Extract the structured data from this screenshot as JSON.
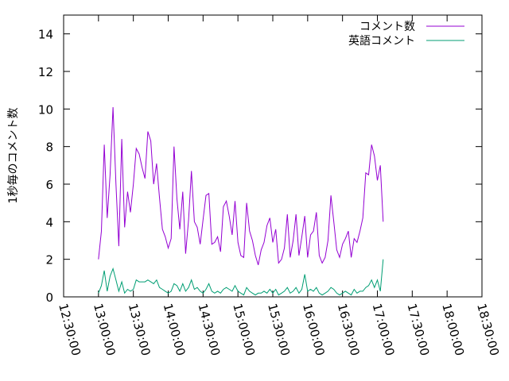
{
  "chart_data": {
    "type": "line",
    "title": "",
    "xlabel": "",
    "ylabel": "1秒毎のコメント数",
    "xlim": [
      "12:30:00",
      "18:30:00"
    ],
    "ylim": [
      0,
      15
    ],
    "x_ticks": [
      "12:30:00",
      "13:00:00",
      "13:30:00",
      "14:00:00",
      "14:30:00",
      "15:00:00",
      "15:30:00",
      "16:00:00",
      "16:30:00",
      "17:00:00",
      "17:30:00",
      "18:00:00",
      "18:30:00"
    ],
    "y_ticks": [
      "0",
      "2",
      "4",
      "6",
      "8",
      "10",
      "12",
      "14"
    ],
    "grid": false,
    "legend_position": "top-right",
    "series": [
      {
        "name": "コメント数",
        "color": "#9400d3",
        "points": [
          [
            "13:00:00",
            2.0
          ],
          [
            "13:02:30",
            3.5
          ],
          [
            "13:05:00",
            8.1
          ],
          [
            "13:07:30",
            4.2
          ],
          [
            "13:10:00",
            6.5
          ],
          [
            "13:12:30",
            10.1
          ],
          [
            "13:15:00",
            6.0
          ],
          [
            "13:17:30",
            2.7
          ],
          [
            "13:20:00",
            8.4
          ],
          [
            "13:22:30",
            3.7
          ],
          [
            "13:25:00",
            5.6
          ],
          [
            "13:27:30",
            4.5
          ],
          [
            "13:30:00",
            6.0
          ],
          [
            "13:32:30",
            7.9
          ],
          [
            "13:35:00",
            7.6
          ],
          [
            "13:37:30",
            6.9
          ],
          [
            "13:40:00",
            6.3
          ],
          [
            "13:42:30",
            8.8
          ],
          [
            "13:45:00",
            8.3
          ],
          [
            "13:47:30",
            6.0
          ],
          [
            "13:50:00",
            7.1
          ],
          [
            "13:52:30",
            5.3
          ],
          [
            "13:55:00",
            3.6
          ],
          [
            "13:57:30",
            3.2
          ],
          [
            "14:00:00",
            2.6
          ],
          [
            "14:02:30",
            3.1
          ],
          [
            "14:05:00",
            8.0
          ],
          [
            "14:07:30",
            5.2
          ],
          [
            "14:10:00",
            3.6
          ],
          [
            "14:12:30",
            5.6
          ],
          [
            "14:15:00",
            2.3
          ],
          [
            "14:17:30",
            4.1
          ],
          [
            "14:20:00",
            6.7
          ],
          [
            "14:22:30",
            4.0
          ],
          [
            "14:25:00",
            3.7
          ],
          [
            "14:27:30",
            2.8
          ],
          [
            "14:30:00",
            4.1
          ],
          [
            "14:32:30",
            5.4
          ],
          [
            "14:35:00",
            5.5
          ],
          [
            "14:37:30",
            2.8
          ],
          [
            "14:40:00",
            2.9
          ],
          [
            "14:42:30",
            3.2
          ],
          [
            "14:45:00",
            2.4
          ],
          [
            "14:47:30",
            4.8
          ],
          [
            "14:50:00",
            5.1
          ],
          [
            "14:52:30",
            4.3
          ],
          [
            "14:55:00",
            3.3
          ],
          [
            "14:57:30",
            5.1
          ],
          [
            "15:00:00",
            2.9
          ],
          [
            "15:02:30",
            2.2
          ],
          [
            "15:05:00",
            2.1
          ],
          [
            "15:07:30",
            5.0
          ],
          [
            "15:10:00",
            3.5
          ],
          [
            "15:12:30",
            3.0
          ],
          [
            "15:15:00",
            2.2
          ],
          [
            "15:17:30",
            1.7
          ],
          [
            "15:20:00",
            2.5
          ],
          [
            "15:22:30",
            2.9
          ],
          [
            "15:25:00",
            3.8
          ],
          [
            "15:27:30",
            4.2
          ],
          [
            "15:30:00",
            2.9
          ],
          [
            "15:32:30",
            3.6
          ],
          [
            "15:35:00",
            1.8
          ],
          [
            "15:37:30",
            2.0
          ],
          [
            "15:40:00",
            2.6
          ],
          [
            "15:42:30",
            4.4
          ],
          [
            "15:45:00",
            2.1
          ],
          [
            "15:47:30",
            3.0
          ],
          [
            "15:50:00",
            4.4
          ],
          [
            "15:52:30",
            2.2
          ],
          [
            "15:55:00",
            3.2
          ],
          [
            "15:57:30",
            4.3
          ],
          [
            "16:00:00",
            2.1
          ],
          [
            "16:02:30",
            3.3
          ],
          [
            "16:05:00",
            3.5
          ],
          [
            "16:07:30",
            4.5
          ],
          [
            "16:10:00",
            2.2
          ],
          [
            "16:12:30",
            1.8
          ],
          [
            "16:15:00",
            2.1
          ],
          [
            "16:17:30",
            3.0
          ],
          [
            "16:20:00",
            5.4
          ],
          [
            "16:22:30",
            4.0
          ],
          [
            "16:25:00",
            2.5
          ],
          [
            "16:27:30",
            2.1
          ],
          [
            "16:30:00",
            2.8
          ],
          [
            "16:32:30",
            3.1
          ],
          [
            "16:35:00",
            3.5
          ],
          [
            "16:37:30",
            2.1
          ],
          [
            "16:40:00",
            3.1
          ],
          [
            "16:42:30",
            2.9
          ],
          [
            "16:45:00",
            3.5
          ],
          [
            "16:47:30",
            4.2
          ],
          [
            "16:50:00",
            6.6
          ],
          [
            "16:52:30",
            6.5
          ],
          [
            "16:55:00",
            8.1
          ],
          [
            "16:57:30",
            7.5
          ],
          [
            "17:00:00",
            6.2
          ],
          [
            "17:02:30",
            7.0
          ],
          [
            "17:05:00",
            4.0
          ]
        ]
      },
      {
        "name": "英語コメント",
        "color": "#009e73",
        "points": [
          [
            "13:00:00",
            0.2
          ],
          [
            "13:02:30",
            0.6
          ],
          [
            "13:05:00",
            1.4
          ],
          [
            "13:07:30",
            0.3
          ],
          [
            "13:10:00",
            1.1
          ],
          [
            "13:12:30",
            1.5
          ],
          [
            "13:15:00",
            0.9
          ],
          [
            "13:17:30",
            0.3
          ],
          [
            "13:20:00",
            0.8
          ],
          [
            "13:22:30",
            0.2
          ],
          [
            "13:25:00",
            0.4
          ],
          [
            "13:27:30",
            0.3
          ],
          [
            "13:30:00",
            0.4
          ],
          [
            "13:32:30",
            0.9
          ],
          [
            "13:35:00",
            0.8
          ],
          [
            "13:37:30",
            0.8
          ],
          [
            "13:40:00",
            0.8
          ],
          [
            "13:42:30",
            0.9
          ],
          [
            "13:45:00",
            0.8
          ],
          [
            "13:47:30",
            0.7
          ],
          [
            "13:50:00",
            0.9
          ],
          [
            "13:52:30",
            0.5
          ],
          [
            "13:55:00",
            0.4
          ],
          [
            "13:57:30",
            0.3
          ],
          [
            "14:00:00",
            0.2
          ],
          [
            "14:02:30",
            0.3
          ],
          [
            "14:05:00",
            0.7
          ],
          [
            "14:07:30",
            0.6
          ],
          [
            "14:10:00",
            0.3
          ],
          [
            "14:12:30",
            0.7
          ],
          [
            "14:15:00",
            0.3
          ],
          [
            "14:17:30",
            0.5
          ],
          [
            "14:20:00",
            0.9
          ],
          [
            "14:22:30",
            0.4
          ],
          [
            "14:25:00",
            0.5
          ],
          [
            "14:27:30",
            0.3
          ],
          [
            "14:30:00",
            0.2
          ],
          [
            "14:32:30",
            0.4
          ],
          [
            "14:35:00",
            0.7
          ],
          [
            "14:37:30",
            0.3
          ],
          [
            "14:40:00",
            0.2
          ],
          [
            "14:42:30",
            0.3
          ],
          [
            "14:45:00",
            0.2
          ],
          [
            "14:47:30",
            0.4
          ],
          [
            "14:50:00",
            0.5
          ],
          [
            "14:52:30",
            0.4
          ],
          [
            "14:55:00",
            0.3
          ],
          [
            "14:57:30",
            0.6
          ],
          [
            "15:00:00",
            0.3
          ],
          [
            "15:02:30",
            0.2
          ],
          [
            "15:05:00",
            0.1
          ],
          [
            "15:07:30",
            0.5
          ],
          [
            "15:10:00",
            0.3
          ],
          [
            "15:12:30",
            0.2
          ],
          [
            "15:15:00",
            0.1
          ],
          [
            "15:17:30",
            0.2
          ],
          [
            "15:20:00",
            0.2
          ],
          [
            "15:22:30",
            0.3
          ],
          [
            "15:25:00",
            0.2
          ],
          [
            "15:27:30",
            0.4
          ],
          [
            "15:30:00",
            0.2
          ],
          [
            "15:32:30",
            0.4
          ],
          [
            "15:35:00",
            0.1
          ],
          [
            "15:37:30",
            0.2
          ],
          [
            "15:40:00",
            0.3
          ],
          [
            "15:42:30",
            0.5
          ],
          [
            "15:45:00",
            0.2
          ],
          [
            "15:47:30",
            0.3
          ],
          [
            "15:50:00",
            0.5
          ],
          [
            "15:52:30",
            0.2
          ],
          [
            "15:55:00",
            0.4
          ],
          [
            "15:57:30",
            1.2
          ],
          [
            "16:00:00",
            0.3
          ],
          [
            "16:02:30",
            0.4
          ],
          [
            "16:05:00",
            0.3
          ],
          [
            "16:07:30",
            0.5
          ],
          [
            "16:10:00",
            0.2
          ],
          [
            "16:12:30",
            0.1
          ],
          [
            "16:15:00",
            0.2
          ],
          [
            "16:17:30",
            0.3
          ],
          [
            "16:20:00",
            0.5
          ],
          [
            "16:22:30",
            0.4
          ],
          [
            "16:25:00",
            0.2
          ],
          [
            "16:27:30",
            0.1
          ],
          [
            "16:30:00",
            0.2
          ],
          [
            "16:32:30",
            0.3
          ],
          [
            "16:35:00",
            0.2
          ],
          [
            "16:37:30",
            0.1
          ],
          [
            "16:40:00",
            0.4
          ],
          [
            "16:42:30",
            0.2
          ],
          [
            "16:45:00",
            0.3
          ],
          [
            "16:47:30",
            0.3
          ],
          [
            "16:50:00",
            0.5
          ],
          [
            "16:52:30",
            0.6
          ],
          [
            "16:55:00",
            0.9
          ],
          [
            "16:57:30",
            0.5
          ],
          [
            "17:00:00",
            0.9
          ],
          [
            "17:02:30",
            0.3
          ],
          [
            "17:05:00",
            2.0
          ]
        ]
      }
    ]
  }
}
